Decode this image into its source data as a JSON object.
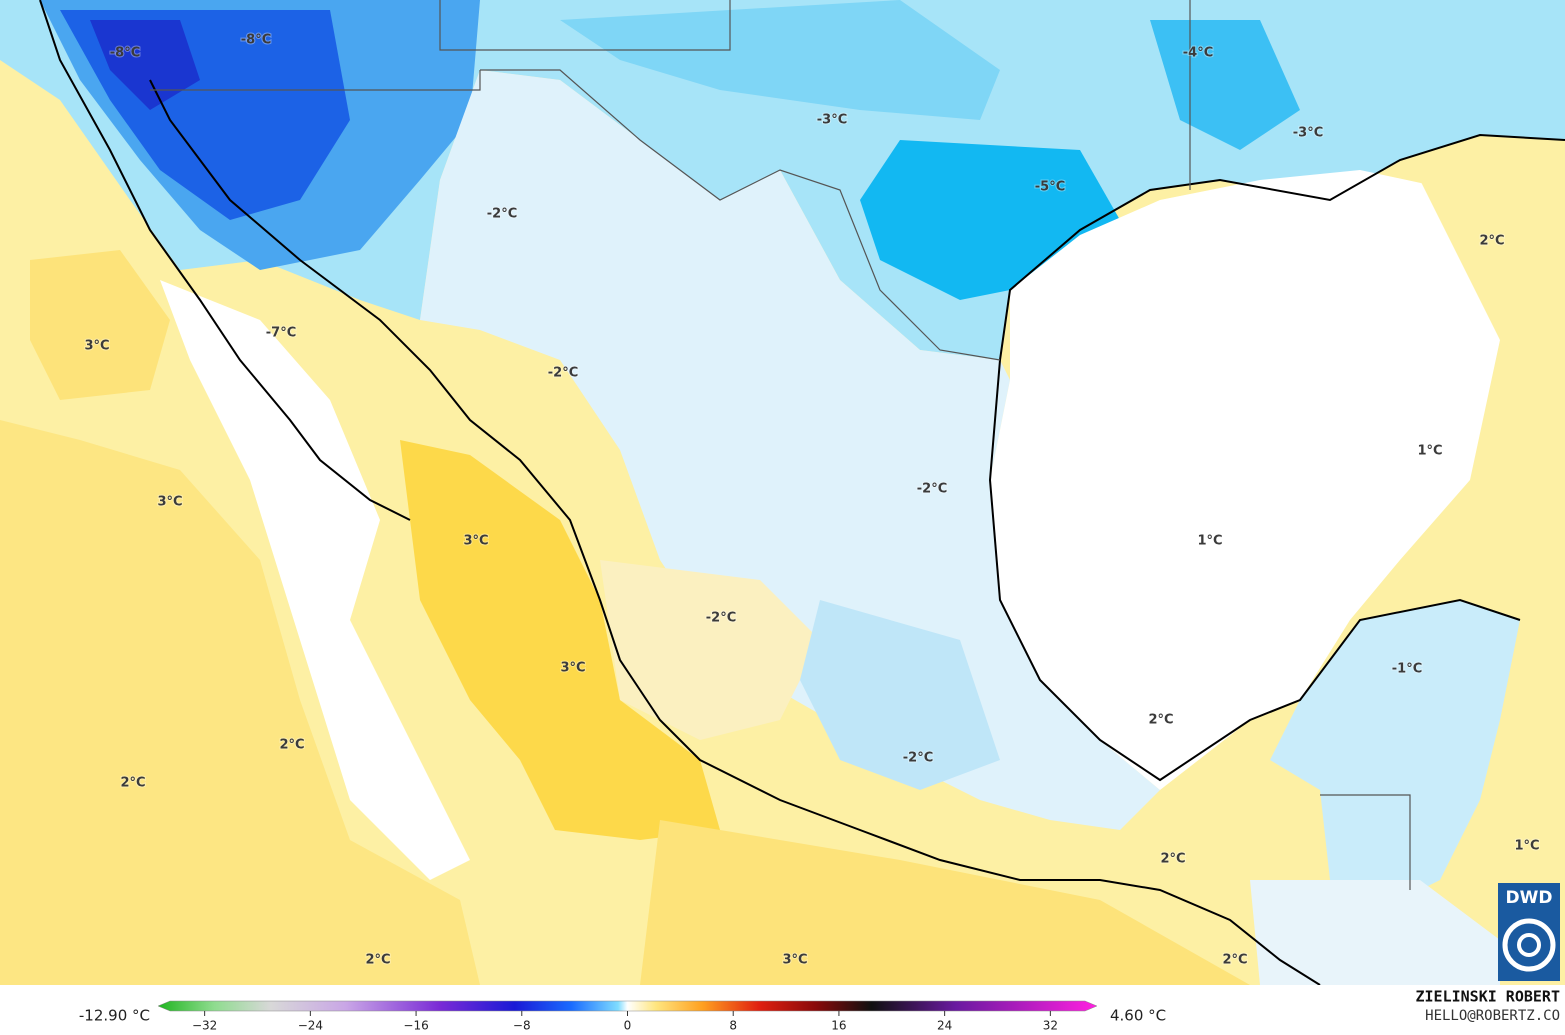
{
  "map": {
    "labels": [
      "-8°C",
      "-8°C",
      "-4°C",
      "-3°C",
      "-3°C",
      "-5°C",
      "2°C",
      "-2°C",
      "3°C",
      "-7°C",
      "-2°C",
      "1°C",
      "3°C",
      "-2°C",
      "1°C",
      "3°C",
      "-2°C",
      "3°C",
      "-1°C",
      "2°C",
      "2°C",
      "-2°C",
      "2°C",
      "1°C",
      "2°C",
      "2°C",
      "3°C",
      "2°C"
    ]
  },
  "colorbar": {
    "min_label": "-12.90 °C",
    "max_label": "4.60 °C",
    "lim": [
      -35,
      35
    ],
    "ticks": [
      {
        "value": -32,
        "label": "−32"
      },
      {
        "value": -24,
        "label": "−24"
      },
      {
        "value": -16,
        "label": "−16"
      },
      {
        "value": -8,
        "label": "−8"
      },
      0,
      8,
      16,
      24,
      32
    ]
  },
  "credits": {
    "author": "ZIELINSKI ROBERT",
    "contact": "HELLO@ROBERTZ.CO",
    "logo": "DWD"
  }
}
